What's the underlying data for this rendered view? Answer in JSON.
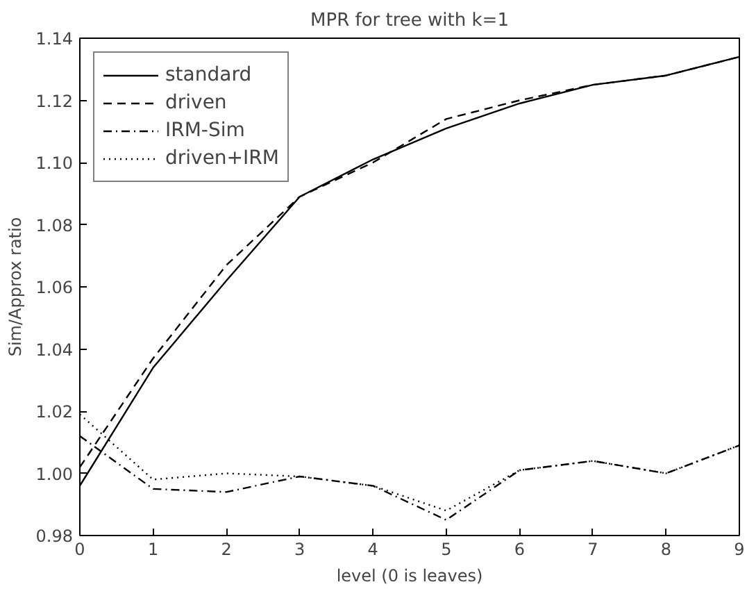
{
  "chart_data": {
    "type": "line",
    "title": "MPR for tree with k=1",
    "xlabel": "level (0 is leaves)",
    "ylabel": "Sim/Approx ratio",
    "x": [
      0,
      1,
      2,
      3,
      4,
      5,
      6,
      7,
      8,
      9
    ],
    "xlim": [
      0,
      9
    ],
    "xticks": [
      0,
      1,
      2,
      3,
      4,
      5,
      6,
      7,
      8,
      9
    ],
    "ylim": [
      0.98,
      1.14
    ],
    "yticks": [
      {
        "value": 0.98,
        "label": "0.98"
      },
      {
        "value": 1.0,
        "label": "1.00"
      },
      {
        "value": 1.02,
        "label": "1.02"
      },
      {
        "value": 1.04,
        "label": "1.04"
      },
      {
        "value": 1.06,
        "label": "1.06"
      },
      {
        "value": 1.08,
        "label": "1.08"
      },
      {
        "value": 1.1,
        "label": "1.10"
      },
      {
        "value": 1.12,
        "label": "1.12"
      },
      {
        "value": 1.14,
        "label": "1.14"
      }
    ],
    "grid": false,
    "legend": "top left",
    "series": [
      {
        "name": "standard",
        "color": "#000000",
        "line_style": "solid",
        "values": [
          0.996,
          1.034,
          1.062,
          1.089,
          1.101,
          1.111,
          1.119,
          1.125,
          1.128,
          1.134
        ]
      },
      {
        "name": "driven",
        "color": "#000000",
        "line_style": "dashed",
        "values": [
          1.002,
          1.037,
          1.067,
          1.089,
          1.1,
          1.114,
          1.12,
          1.125,
          1.128,
          1.134
        ]
      },
      {
        "name": "IRM-Sim",
        "color": "#000000",
        "line_style": "dashdot",
        "values": [
          1.012,
          0.995,
          0.994,
          0.999,
          0.996,
          0.985,
          1.001,
          1.004,
          1.0,
          1.009
        ]
      },
      {
        "name": "driven+IRM",
        "color": "#000000",
        "line_style": "dotted",
        "values": [
          1.019,
          0.998,
          1.0,
          0.999,
          0.996,
          0.988,
          1.001,
          1.004,
          1.0,
          1.009
        ]
      }
    ]
  }
}
